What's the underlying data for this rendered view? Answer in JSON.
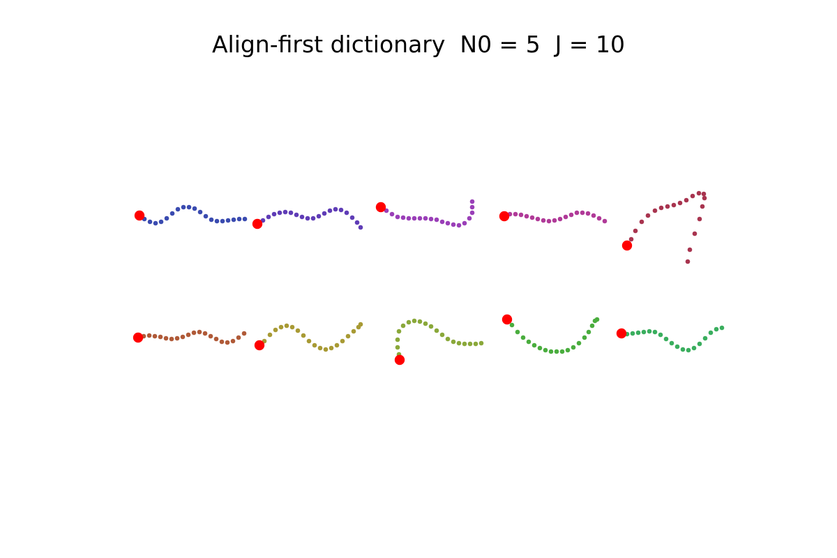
{
  "chart_data": {
    "type": "scatter",
    "title": "Align-first dictionary  N0 = 5  J = 10",
    "xlabel": "",
    "ylabel": "",
    "grid": false,
    "axes_visible": false,
    "marker_color": "#ff0000",
    "series": [
      {
        "color": "#3a4bb0",
        "points": [
          [
            200,
            309
          ],
          [
            207,
            314
          ],
          [
            215,
            318
          ],
          [
            223,
            320
          ],
          [
            231,
            318
          ],
          [
            239,
            313
          ],
          [
            247,
            306
          ],
          [
            255,
            300
          ],
          [
            263,
            297
          ],
          [
            271,
            297
          ],
          [
            279,
            299
          ],
          [
            287,
            304
          ],
          [
            295,
            310
          ],
          [
            303,
            315
          ],
          [
            311,
            317
          ],
          [
            319,
            317
          ],
          [
            327,
            316
          ],
          [
            335,
            315
          ],
          [
            343,
            314
          ],
          [
            351,
            314
          ]
        ]
      },
      {
        "color": "#5f3cb6",
        "points": [
          [
            369,
            321
          ],
          [
            377,
            316
          ],
          [
            385,
            311
          ],
          [
            393,
            307
          ],
          [
            401,
            305
          ],
          [
            409,
            304
          ],
          [
            417,
            305
          ],
          [
            425,
            308
          ],
          [
            433,
            311
          ],
          [
            441,
            313
          ],
          [
            449,
            313
          ],
          [
            457,
            310
          ],
          [
            465,
            306
          ],
          [
            473,
            302
          ],
          [
            481,
            300
          ],
          [
            489,
            301
          ],
          [
            497,
            305
          ],
          [
            505,
            312
          ],
          [
            512,
            319
          ],
          [
            517,
            326
          ]
        ]
      },
      {
        "color": "#9a3fb8",
        "points": [
          [
            546,
            297
          ],
          [
            554,
            302
          ],
          [
            562,
            307
          ],
          [
            570,
            311
          ],
          [
            578,
            312
          ],
          [
            586,
            313
          ],
          [
            594,
            313
          ],
          [
            602,
            313
          ],
          [
            610,
            313
          ],
          [
            618,
            314
          ],
          [
            626,
            315
          ],
          [
            634,
            318
          ],
          [
            642,
            320
          ],
          [
            650,
            322
          ],
          [
            658,
            323
          ],
          [
            666,
            320
          ],
          [
            673,
            313
          ],
          [
            677,
            305
          ],
          [
            677,
            297
          ],
          [
            677,
            289
          ]
        ]
      },
      {
        "color": "#b03a98",
        "points": [
          [
            723,
            310
          ],
          [
            731,
            307
          ],
          [
            739,
            307
          ],
          [
            747,
            308
          ],
          [
            755,
            310
          ],
          [
            763,
            312
          ],
          [
            771,
            314
          ],
          [
            779,
            316
          ],
          [
            787,
            317
          ],
          [
            795,
            316
          ],
          [
            803,
            314
          ],
          [
            811,
            311
          ],
          [
            819,
            308
          ],
          [
            827,
            305
          ],
          [
            835,
            305
          ],
          [
            843,
            306
          ],
          [
            851,
            309
          ],
          [
            859,
            313
          ],
          [
            867,
            317
          ]
        ]
      },
      {
        "color": "#a8344f",
        "points": [
          [
            899,
            352
          ],
          [
            905,
            343
          ],
          [
            911,
            331
          ],
          [
            920,
            318
          ],
          [
            929,
            309
          ],
          [
            939,
            302
          ],
          [
            948,
            298
          ],
          [
            957,
            296
          ],
          [
            966,
            294
          ],
          [
            975,
            291
          ],
          [
            984,
            287
          ],
          [
            993,
            281
          ],
          [
            1002,
            277
          ],
          [
            1009,
            278
          ],
          [
            1010,
            284
          ],
          [
            1007,
            296
          ],
          [
            1003,
            314
          ],
          [
            996,
            335
          ],
          [
            989,
            358
          ],
          [
            986,
            375
          ]
        ]
      },
      {
        "color": "#b05a38",
        "points": [
          [
            198,
            484
          ],
          [
            206,
            482
          ],
          [
            214,
            481
          ],
          [
            222,
            482
          ],
          [
            230,
            483
          ],
          [
            238,
            485
          ],
          [
            246,
            486
          ],
          [
            254,
            485
          ],
          [
            262,
            483
          ],
          [
            270,
            480
          ],
          [
            278,
            477
          ],
          [
            286,
            476
          ],
          [
            294,
            478
          ],
          [
            302,
            482
          ],
          [
            310,
            486
          ],
          [
            318,
            490
          ],
          [
            326,
            491
          ],
          [
            334,
            489
          ],
          [
            342,
            484
          ],
          [
            350,
            478
          ]
        ]
      },
      {
        "color": "#a89a34",
        "points": [
          [
            372,
            495
          ],
          [
            379,
            489
          ],
          [
            387,
            480
          ],
          [
            395,
            473
          ],
          [
            403,
            469
          ],
          [
            411,
            467
          ],
          [
            419,
            469
          ],
          [
            427,
            474
          ],
          [
            435,
            481
          ],
          [
            443,
            489
          ],
          [
            451,
            495
          ],
          [
            459,
            499
          ],
          [
            467,
            501
          ],
          [
            475,
            499
          ],
          [
            483,
            495
          ],
          [
            491,
            489
          ],
          [
            499,
            482
          ],
          [
            507,
            475
          ],
          [
            514,
            469
          ],
          [
            517,
            465
          ]
        ]
      },
      {
        "color": "#8aa83a",
        "points": [
          [
            573,
            516
          ],
          [
            572,
            508
          ],
          [
            570,
            498
          ],
          [
            570,
            487
          ],
          [
            572,
            475
          ],
          [
            578,
            467
          ],
          [
            586,
            462
          ],
          [
            594,
            460
          ],
          [
            602,
            461
          ],
          [
            610,
            464
          ],
          [
            618,
            468
          ],
          [
            626,
            474
          ],
          [
            634,
            480
          ],
          [
            642,
            486
          ],
          [
            650,
            490
          ],
          [
            658,
            492
          ],
          [
            666,
            493
          ],
          [
            674,
            493
          ],
          [
            682,
            493
          ],
          [
            690,
            492
          ]
        ]
      },
      {
        "color": "#4aad3e",
        "points": [
          [
            727,
            458
          ],
          [
            734,
            466
          ],
          [
            742,
            476
          ],
          [
            750,
            484
          ],
          [
            758,
            490
          ],
          [
            766,
            495
          ],
          [
            774,
            499
          ],
          [
            782,
            502
          ],
          [
            790,
            504
          ],
          [
            798,
            504
          ],
          [
            806,
            504
          ],
          [
            814,
            502
          ],
          [
            822,
            498
          ],
          [
            830,
            492
          ],
          [
            838,
            484
          ],
          [
            844,
            476
          ],
          [
            849,
            467
          ],
          [
            853,
            460
          ],
          [
            856,
            458
          ]
        ]
      },
      {
        "color": "#3aae5e",
        "points": [
          [
            891,
            478
          ],
          [
            899,
            479
          ],
          [
            907,
            478
          ],
          [
            915,
            477
          ],
          [
            923,
            476
          ],
          [
            931,
            475
          ],
          [
            939,
            476
          ],
          [
            947,
            480
          ],
          [
            955,
            486
          ],
          [
            963,
            492
          ],
          [
            971,
            497
          ],
          [
            979,
            501
          ],
          [
            987,
            502
          ],
          [
            995,
            499
          ],
          [
            1003,
            493
          ],
          [
            1011,
            485
          ],
          [
            1019,
            477
          ],
          [
            1027,
            472
          ],
          [
            1035,
            470
          ]
        ]
      }
    ]
  }
}
